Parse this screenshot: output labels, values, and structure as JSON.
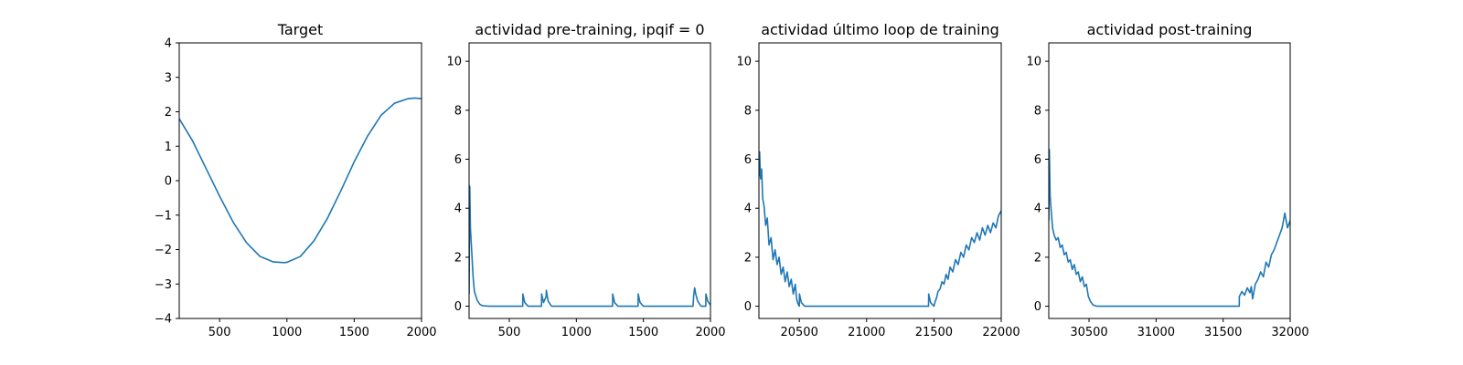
{
  "chart_data": [
    {
      "type": "line",
      "title": "Target",
      "xlim": [
        200,
        2000
      ],
      "ylim": [
        -4,
        4
      ],
      "xticks": [
        500,
        1000,
        1500,
        2000
      ],
      "yticks": [
        -4,
        -3,
        -2,
        -1,
        0,
        1,
        2,
        3,
        4
      ],
      "xtick_labels": [
        "500",
        "1000",
        "1500",
        "2000"
      ],
      "ytick_labels": [
        "−4",
        "−3",
        "−2",
        "−1",
        "0",
        "1",
        "2",
        "3",
        "4"
      ],
      "grid": false,
      "series": [
        {
          "color": "#1f77b4",
          "x": [
            200,
            300,
            400,
            500,
            600,
            700,
            800,
            900,
            980,
            1000,
            1100,
            1200,
            1300,
            1400,
            1500,
            1600,
            1700,
            1800,
            1900,
            1950,
            2000
          ],
          "y": [
            1.8,
            1.15,
            0.35,
            -0.45,
            -1.2,
            -1.8,
            -2.2,
            -2.36,
            -2.38,
            -2.37,
            -2.2,
            -1.75,
            -1.1,
            -0.3,
            0.55,
            1.3,
            1.9,
            2.25,
            2.38,
            2.4,
            2.38
          ]
        }
      ]
    },
    {
      "type": "line",
      "title": "actividad pre-training, ipqif = 0",
      "xlim": [
        200,
        2000
      ],
      "ylim": [
        -0.5,
        10.75
      ],
      "xticks": [
        500,
        1000,
        1500,
        2000
      ],
      "yticks": [
        0,
        2,
        4,
        6,
        8,
        10
      ],
      "xtick_labels": [
        "500",
        "1000",
        "1500",
        "2000"
      ],
      "ytick_labels": [
        "0",
        "2",
        "4",
        "6",
        "8",
        "10"
      ],
      "grid": false,
      "series": [
        {
          "color": "#1f77b4",
          "x": [
            200,
            205,
            210,
            220,
            230,
            240,
            260,
            280,
            300,
            350,
            600,
            601,
            615,
            640,
            740,
            741,
            755,
            775,
            776,
            790,
            815,
            1270,
            1271,
            1285,
            1310,
            1460,
            1461,
            1475,
            1500,
            1870,
            1875,
            1882,
            1890,
            1905,
            1930,
            1965,
            1966,
            1980,
            2000
          ],
          "y": [
            0.5,
            4.9,
            3.2,
            2.2,
            1.2,
            0.6,
            0.25,
            0.08,
            0.02,
            0.0,
            0.0,
            0.5,
            0.15,
            0.0,
            0.0,
            0.5,
            0.15,
            0.4,
            0.65,
            0.2,
            0.0,
            0.0,
            0.5,
            0.15,
            0.0,
            0.0,
            0.5,
            0.15,
            0.0,
            0.0,
            0.45,
            0.75,
            0.5,
            0.2,
            0.0,
            0.0,
            0.5,
            0.2,
            0.05
          ]
        }
      ]
    },
    {
      "type": "line",
      "title": "actividad último loop de training",
      "xlim": [
        20200,
        22000
      ],
      "ylim": [
        -0.5,
        10.75
      ],
      "xticks": [
        20500,
        21000,
        21500,
        22000
      ],
      "yticks": [
        0,
        2,
        4,
        6,
        8,
        10
      ],
      "xtick_labels": [
        "20500",
        "21000",
        "21500",
        "22000"
      ],
      "ytick_labels": [
        "0",
        "2",
        "4",
        "6",
        "8",
        "10"
      ],
      "grid": false,
      "series": [
        {
          "color": "#1f77b4",
          "x": [
            20200,
            20205,
            20212,
            20220,
            20228,
            20238,
            20250,
            20262,
            20275,
            20290,
            20305,
            20320,
            20335,
            20350,
            20365,
            20380,
            20395,
            20410,
            20425,
            20440,
            20455,
            20470,
            20480,
            20490,
            20500,
            20501,
            20515,
            20540,
            21460,
            21461,
            21475,
            21500,
            21510,
            21520,
            21530,
            21545,
            21560,
            21575,
            21590,
            21605,
            21620,
            21640,
            21660,
            21680,
            21700,
            21720,
            21740,
            21760,
            21780,
            21800,
            21820,
            21840,
            21860,
            21880,
            21900,
            21920,
            21940,
            21960,
            21980,
            22000
          ],
          "y": [
            5.3,
            6.3,
            5.2,
            5.6,
            4.4,
            4.1,
            3.3,
            3.6,
            2.5,
            2.8,
            1.9,
            2.3,
            1.7,
            2.0,
            1.3,
            1.6,
            1.0,
            1.4,
            0.8,
            1.1,
            0.5,
            0.9,
            0.3,
            0.1,
            0.0,
            0.5,
            0.15,
            0.0,
            0.0,
            0.5,
            0.15,
            0.0,
            0.2,
            0.35,
            0.6,
            0.7,
            1.0,
            0.9,
            1.3,
            1.1,
            1.6,
            1.4,
            1.9,
            1.7,
            2.2,
            2.0,
            2.5,
            2.3,
            2.8,
            2.6,
            3.0,
            2.7,
            3.2,
            2.9,
            3.3,
            3.0,
            3.4,
            3.2,
            3.7,
            3.9
          ]
        }
      ]
    },
    {
      "type": "line",
      "title": "actividad post-training",
      "xlim": [
        30200,
        32000
      ],
      "ylim": [
        -0.5,
        10.75
      ],
      "xticks": [
        30500,
        31000,
        31500,
        32000
      ],
      "yticks": [
        0,
        2,
        4,
        6,
        8,
        10
      ],
      "xtick_labels": [
        "30500",
        "31000",
        "31500",
        "32000"
      ],
      "ytick_labels": [
        "0",
        "2",
        "4",
        "6",
        "8",
        "10"
      ],
      "grid": false,
      "series": [
        {
          "color": "#1f77b4",
          "x": [
            30200,
            30204,
            30210,
            30218,
            30228,
            30240,
            30255,
            30270,
            30285,
            30300,
            30315,
            30330,
            30345,
            30360,
            30375,
            30390,
            30405,
            30420,
            30435,
            30450,
            30465,
            30480,
            30495,
            30510,
            30530,
            30560,
            31620,
            31621,
            31640,
            31660,
            31680,
            31700,
            31710,
            31720,
            31740,
            31760,
            31780,
            31800,
            31820,
            31840,
            31860,
            31880,
            31900,
            31920,
            31940,
            31960,
            31980,
            32000
          ],
          "y": [
            3.5,
            6.4,
            4.5,
            3.9,
            3.2,
            2.9,
            2.7,
            2.8,
            2.4,
            2.5,
            2.1,
            2.2,
            1.8,
            1.9,
            1.5,
            1.7,
            1.3,
            1.4,
            1.0,
            1.2,
            0.8,
            0.9,
            0.4,
            0.2,
            0.05,
            0.0,
            0.0,
            0.4,
            0.6,
            0.45,
            0.75,
            0.55,
            0.8,
            0.3,
            0.9,
            1.1,
            1.4,
            1.2,
            1.8,
            1.6,
            2.1,
            2.3,
            2.6,
            2.9,
            3.2,
            3.8,
            3.2,
            3.5
          ]
        }
      ]
    }
  ]
}
